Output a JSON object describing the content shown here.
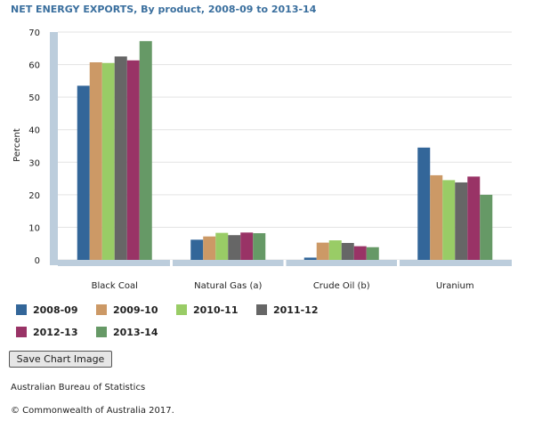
{
  "chart_data": {
    "type": "bar",
    "title": "NET ENERGY EXPORTS, By product, 2008-09 to 2013-14",
    "ylabel": "Percent",
    "xlabel": "",
    "ylim": [
      0,
      70
    ],
    "yticks": [
      0,
      10,
      20,
      30,
      40,
      50,
      60,
      70
    ],
    "grid": true,
    "legend": "bottom",
    "categories": [
      "Black Coal",
      "Natural Gas (a)",
      "Crude Oil (b)",
      "Uranium"
    ],
    "series": [
      {
        "name": "2008-09",
        "color": "#336699",
        "values": [
          53.5,
          6.2,
          0.7,
          34.5
        ]
      },
      {
        "name": "2009-10",
        "color": "#cc9966",
        "values": [
          60.7,
          7.2,
          5.3,
          26.0
        ]
      },
      {
        "name": "2010-11",
        "color": "#99cc66",
        "values": [
          60.5,
          8.3,
          6.0,
          24.5
        ]
      },
      {
        "name": "2011-12",
        "color": "#666666",
        "values": [
          62.5,
          7.6,
          5.2,
          23.8
        ]
      },
      {
        "name": "2012-13",
        "color": "#993366",
        "values": [
          61.3,
          8.4,
          4.2,
          25.6
        ]
      },
      {
        "name": "2013-14",
        "color": "#669966",
        "values": [
          67.2,
          8.2,
          3.9,
          20.0
        ]
      }
    ]
  },
  "ui": {
    "save_button_label": "Save Chart Image",
    "source": "Australian Bureau of Statistics",
    "copyright": "© Commonwealth of Australia 2017."
  }
}
